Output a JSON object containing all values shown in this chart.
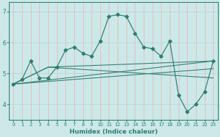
{
  "xlabel": "Humidex (Indice chaleur)",
  "bg_color": "#cce8e8",
  "line_color": "#2e7d6e",
  "grid_color_h": "#b8d8d8",
  "grid_color_v": "#e8b8b8",
  "xlim": [
    -0.5,
    23.5
  ],
  "ylim": [
    3.5,
    7.3
  ],
  "yticks": [
    4,
    5,
    6,
    7
  ],
  "xticks": [
    0,
    1,
    2,
    3,
    4,
    5,
    6,
    7,
    8,
    9,
    10,
    11,
    12,
    13,
    14,
    15,
    16,
    17,
    18,
    19,
    20,
    21,
    22,
    23
  ],
  "series1_x": [
    0,
    1,
    2,
    3,
    4,
    5,
    6,
    7,
    8,
    9,
    10,
    11,
    12,
    13,
    14,
    15,
    16,
    17,
    18,
    19,
    20,
    21,
    22,
    23
  ],
  "series1_y": [
    4.65,
    4.8,
    5.4,
    4.85,
    4.85,
    5.2,
    5.75,
    5.85,
    5.65,
    5.55,
    6.05,
    6.85,
    6.9,
    6.85,
    6.3,
    5.85,
    5.8,
    5.55,
    6.05,
    4.3,
    3.75,
    4.0,
    4.4,
    5.4
  ],
  "trend1_x": [
    0,
    23
  ],
  "trend1_y": [
    4.65,
    5.4
  ],
  "trend2_x": [
    0,
    23
  ],
  "trend2_y": [
    4.65,
    5.15
  ],
  "trend3_x": [
    0,
    4,
    23
  ],
  "trend3_y": [
    4.65,
    5.2,
    5.4
  ],
  "trend4_x": [
    0,
    4,
    23
  ],
  "trend4_y": [
    4.65,
    5.2,
    4.85
  ]
}
